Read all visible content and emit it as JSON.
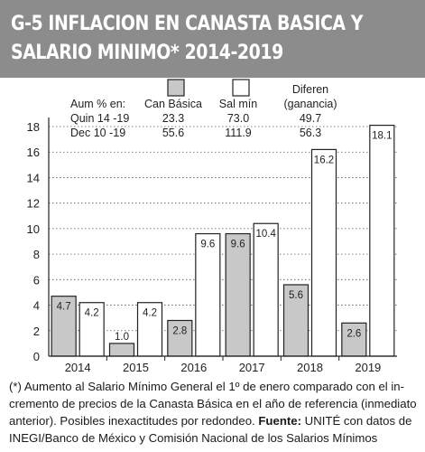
{
  "header": {
    "title_line1": "G-5  INFLACION EN CANASTA BASICA Y",
    "title_line2": "SALARIO MINIMO* 2014-2019"
  },
  "colors": {
    "header_bg": "#8c8c8c",
    "canasta_fill": "#c8c8c8",
    "salario_fill": "#ffffff",
    "stroke": "#222222"
  },
  "summary_table": {
    "row_label_header": "Aum % en:",
    "columns": [
      "Can Básica",
      "Sal mín",
      "Diferen",
      "(ganancia)"
    ],
    "rows": [
      {
        "label": "Quin 14 -19",
        "can_basica": "23.3",
        "sal_min": "73.0",
        "diferen": "49.7"
      },
      {
        "label": "Dec  10 -19",
        "can_basica": "55.6",
        "sal_min": "111.9",
        "diferen": "56.3"
      }
    ]
  },
  "chart_data": {
    "type": "bar",
    "categories": [
      "2014",
      "2015",
      "2016",
      "2017",
      "2018",
      "2019"
    ],
    "series": [
      {
        "name": "Can Básica",
        "values": [
          4.7,
          1.0,
          2.8,
          9.6,
          5.6,
          2.6
        ],
        "labels": [
          "4.7",
          "1.0",
          "2.8",
          "9.6",
          "5.6",
          "2.6"
        ]
      },
      {
        "name": "Sal mín",
        "values": [
          4.2,
          4.2,
          9.6,
          10.4,
          16.2,
          18.1
        ],
        "labels": [
          "4.2",
          "4.2",
          "9.6",
          "10.4",
          "16.2",
          "18.1"
        ]
      }
    ],
    "ylim": [
      0,
      18
    ],
    "yticks": [
      "0",
      "2",
      "4",
      "6",
      "8",
      "10",
      "12",
      "14",
      "16",
      "18"
    ],
    "legend_placement": "top"
  },
  "footnote": {
    "text": "(*) Aumento al Salario Mínimo General el 1º de enero comparado con el in-cremento de precios de la Canasta Básica en el año de referencia (inmediato anterior). Posibles inexactitudes por redondeo.",
    "source_label": "Fuente:",
    "source_text": "UNITÉ con datos de INEGI/Banco de México y Comisión Nacional de los Salarios Mínimos"
  }
}
